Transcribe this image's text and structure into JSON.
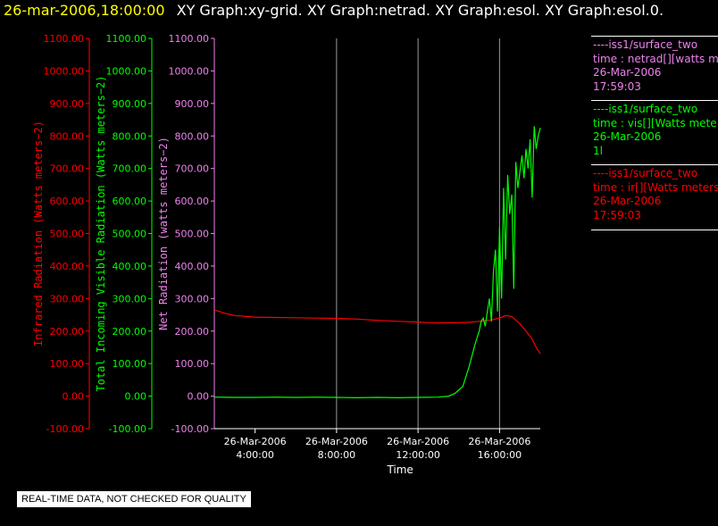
{
  "header": {
    "datetime": "26-mar-2006,18:00:00",
    "titles": "XY Graph:xy-grid.  XY Graph:netrad.  XY Graph:esol.  XY Graph:esol.0."
  },
  "chart_data": {
    "type": "line",
    "xlabel": "Time",
    "x_ticks": [
      {
        "date": "26-Mar-2006",
        "time": "4:00:00"
      },
      {
        "date": "26-Mar-2006",
        "time": "8:00:00"
      },
      {
        "date": "26-Mar-2006",
        "time": "12:00:00"
      },
      {
        "date": "26-Mar-2006",
        "time": "16:00:00"
      }
    ],
    "xlim_hours": [
      2.0,
      18.0
    ],
    "grid_x_hours": [
      8,
      12,
      16
    ],
    "y_ticks": [
      -100,
      0,
      100,
      200,
      300,
      400,
      500,
      600,
      700,
      800,
      900,
      1000,
      1100
    ],
    "y_tick_labels": [
      "-100.00",
      "0.00",
      "100.00",
      "200.00",
      "300.00",
      "400.00",
      "500.00",
      "600.00",
      "700.00",
      "800.00",
      "900.00",
      "1000.00",
      "1100.00"
    ],
    "ylim": [
      -100,
      1100
    ],
    "axes": [
      {
        "label": "Infrared Radiation (Watts meters^-2)",
        "color": "#ff0000"
      },
      {
        "label": "Total Incoming Visible Radiation (Watts meters^-2)",
        "color": "#00ff00"
      },
      {
        "label": "Net Radiation (watts meters^-2)",
        "color": "#ee82ee"
      }
    ],
    "series": [
      {
        "name": "iss1/surface_two time : ir[][Watts meters",
        "color": "#ff0000",
        "x": [
          2.0,
          2.5,
          3.0,
          4.0,
          5.0,
          6.0,
          7.0,
          8.0,
          9.0,
          10.0,
          11.0,
          12.0,
          12.5,
          13.0,
          14.0,
          14.5,
          15.0,
          15.5,
          16.0,
          16.3,
          16.6,
          17.0,
          17.3,
          17.6,
          17.8,
          18.0
        ],
        "y": [
          265,
          255,
          248,
          243,
          242,
          241,
          240,
          239,
          237,
          233,
          230,
          228,
          226,
          225,
          226,
          227,
          230,
          233,
          240,
          248,
          245,
          222,
          200,
          175,
          150,
          130
        ]
      },
      {
        "name": "iss1/surface_two time : vis[][Watts meters",
        "color": "#00ff00",
        "x": [
          2.0,
          3.0,
          4.0,
          5.0,
          6.0,
          7.0,
          8.0,
          9.0,
          10.0,
          11.0,
          12.0,
          13.0,
          13.5,
          13.8,
          14.2,
          14.5,
          14.8,
          15.0,
          15.1,
          15.2,
          15.3,
          15.4,
          15.5,
          15.6,
          15.7,
          15.8,
          15.9,
          16.0,
          16.1,
          16.2,
          16.3,
          16.4,
          16.5,
          16.6,
          16.7,
          16.8,
          16.9,
          17.0,
          17.1,
          17.2,
          17.3,
          17.4,
          17.5,
          17.6,
          17.7,
          17.8,
          17.9,
          18.0
        ],
        "y": [
          -3,
          -4,
          -4,
          -3,
          -4,
          -3,
          -4,
          -5,
          -4,
          -5,
          -4,
          -3,
          0,
          8,
          30,
          90,
          160,
          200,
          230,
          240,
          215,
          260,
          300,
          230,
          380,
          450,
          260,
          520,
          300,
          640,
          420,
          680,
          560,
          620,
          330,
          720,
          640,
          690,
          740,
          670,
          760,
          700,
          790,
          610,
          830,
          760,
          800,
          825
        ]
      }
    ]
  },
  "legend": [
    {
      "source": "----iss1/surface_two",
      "label": "time : netrad[][watts me",
      "date": "26-Mar-2006",
      "time": "17:59:03",
      "color": "#ee82ee"
    },
    {
      "source": "----iss1/surface_two",
      "label": "time : vis[][Watts mete",
      "date": "26-Mar-2006",
      "time": "1l",
      "color": "#00ff00"
    },
    {
      "source": "----iss1/surface_two",
      "label": "time : ir[][Watts meters",
      "date": "26-Mar-2006",
      "time": "17:59:03",
      "color": "#ff0000"
    }
  ],
  "qc_note": "REAL-TIME DATA, NOT CHECKED FOR QUALITY"
}
